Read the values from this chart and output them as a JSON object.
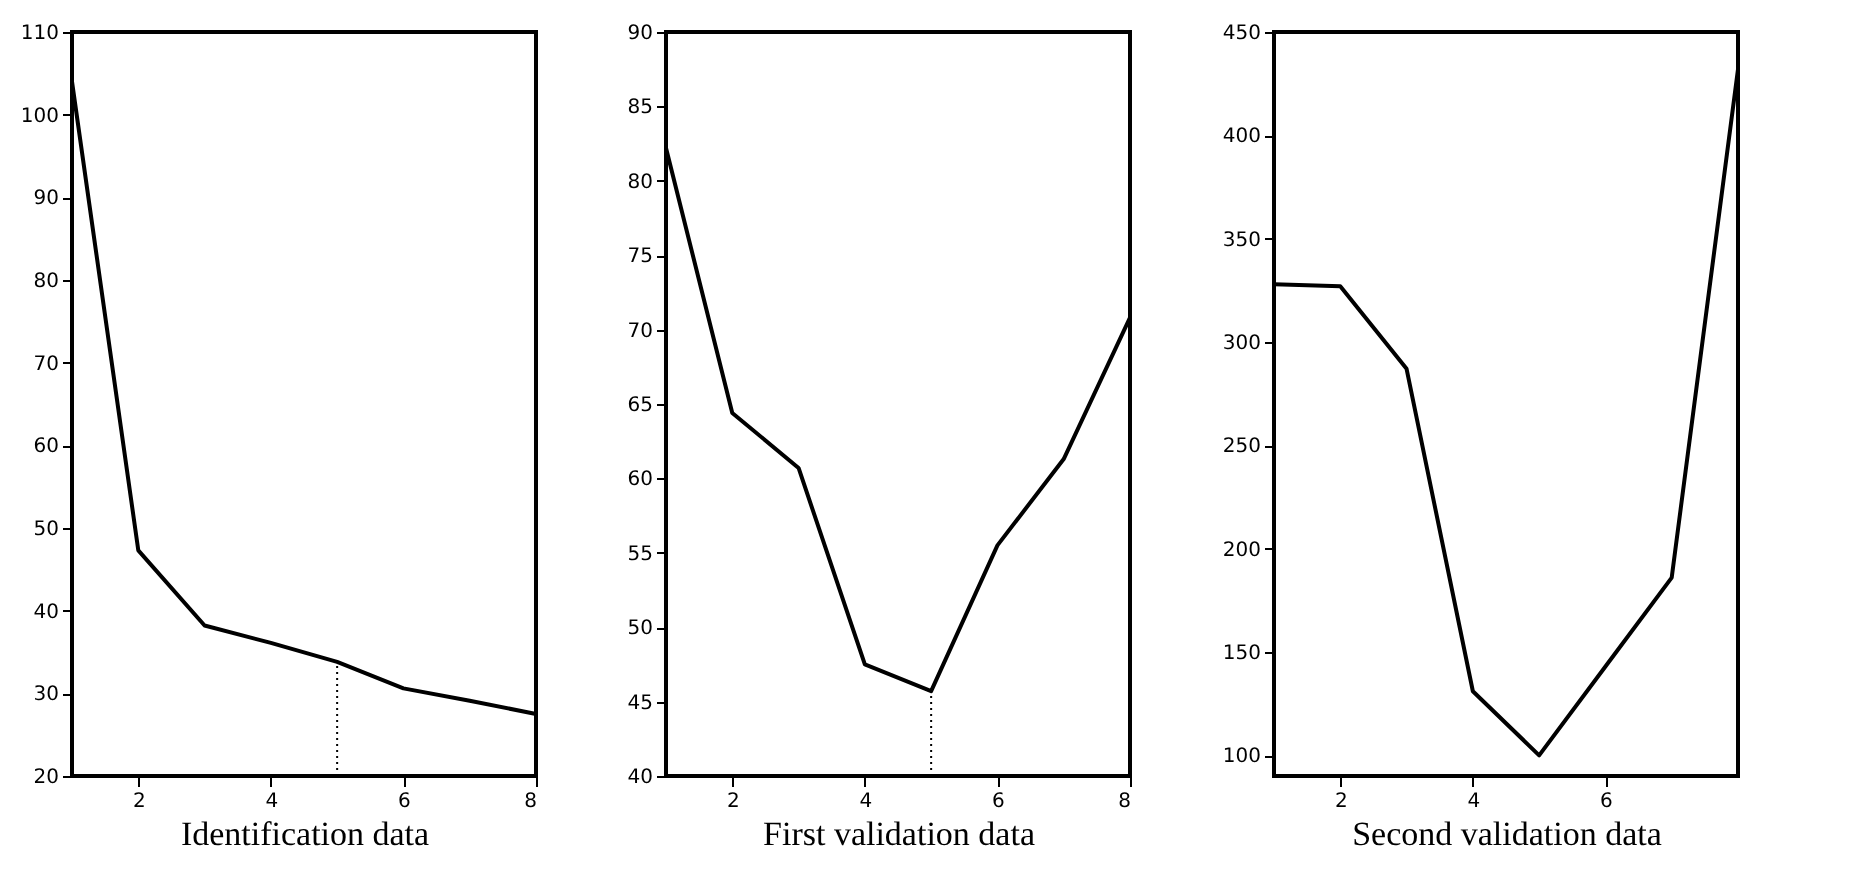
{
  "chart_data": [
    {
      "type": "line",
      "xlabel": "Identification data",
      "x": [
        1,
        2,
        3,
        4,
        5,
        6,
        7,
        8
      ],
      "xlim": [
        1,
        8
      ],
      "xticks": [
        2,
        4,
        6,
        8
      ],
      "ylim": [
        20,
        110
      ],
      "yticks": [
        20,
        30,
        40,
        50,
        60,
        70,
        80,
        90,
        100,
        110
      ],
      "grid": false,
      "series": [
        {
          "color": "#000000",
          "values": [
            104,
            47.3,
            38.2,
            36.1,
            33.8,
            30.6,
            29.1,
            27.5
          ]
        }
      ],
      "ref_lines": [
        {
          "axis": "x",
          "value": 5,
          "color": "#000000",
          "line_style": "dotted"
        }
      ]
    },
    {
      "type": "line",
      "xlabel": "First validation data",
      "x": [
        1,
        2,
        3,
        4,
        5,
        6,
        7,
        8
      ],
      "xlim": [
        1,
        8
      ],
      "xticks": [
        2,
        4,
        6,
        8
      ],
      "ylim": [
        40,
        90
      ],
      "yticks": [
        40,
        45,
        50,
        55,
        60,
        65,
        70,
        75,
        80,
        85,
        90
      ],
      "grid": false,
      "series": [
        {
          "color": "#000000",
          "values": [
            82.2,
            64.4,
            60.7,
            47.5,
            45.7,
            55.5,
            61.3,
            70.8
          ]
        }
      ],
      "ref_lines": [
        {
          "axis": "x",
          "value": 5,
          "color": "#000000",
          "line_style": "dotted"
        }
      ]
    },
    {
      "type": "line",
      "xlabel": "Second validation data",
      "x": [
        1,
        2,
        3,
        4,
        5,
        6,
        7,
        8
      ],
      "xlim": [
        1,
        8
      ],
      "xticks": [
        2,
        4,
        6
      ],
      "ylim": [
        90,
        450
      ],
      "yticks": [
        100,
        150,
        200,
        250,
        300,
        350,
        400,
        450
      ],
      "grid": false,
      "series": [
        {
          "color": "#000000",
          "values": [
            328,
            327,
            287,
            131,
            100,
            143,
            186,
            432
          ]
        }
      ]
    }
  ]
}
